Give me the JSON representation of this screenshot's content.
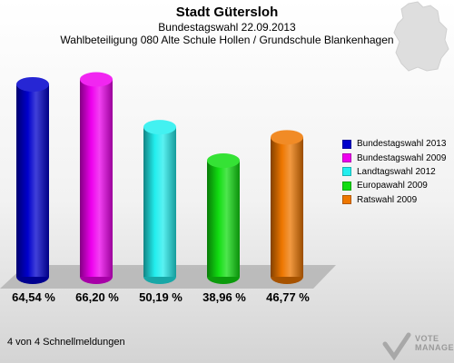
{
  "header": {
    "title": "Stadt Gütersloh",
    "subtitle": "Bundestagswahl 22.09.2013",
    "subtitle2": "Wahlbeteiligung 080 Alte Schule Hollen / Grundschule Blankenhagen"
  },
  "footer": {
    "text": "4 von 4 Schnellmeldungen"
  },
  "logo": {
    "line1": "VOTE",
    "line2": "MANAGER"
  },
  "chart_data": {
    "type": "bar",
    "title": "Stadt Gütersloh",
    "categories": [
      "Bundestagswahl 2013",
      "Bundestagswahl 2009",
      "Landtagswahl 2012",
      "Europawahl 2009",
      "Ratswahl 2009"
    ],
    "values": [
      64.54,
      66.2,
      50.19,
      38.96,
      46.77
    ],
    "data_labels": [
      "64,54 %",
      "66,20 %",
      "50,19 %",
      "38,96 %",
      "46,77 %"
    ],
    "colors": [
      "#0000cc",
      "#ee00ee",
      "#22eeee",
      "#11dd11",
      "#ee7700"
    ],
    "ylim": [
      0,
      70
    ],
    "grid": false,
    "legend_position": "right"
  }
}
